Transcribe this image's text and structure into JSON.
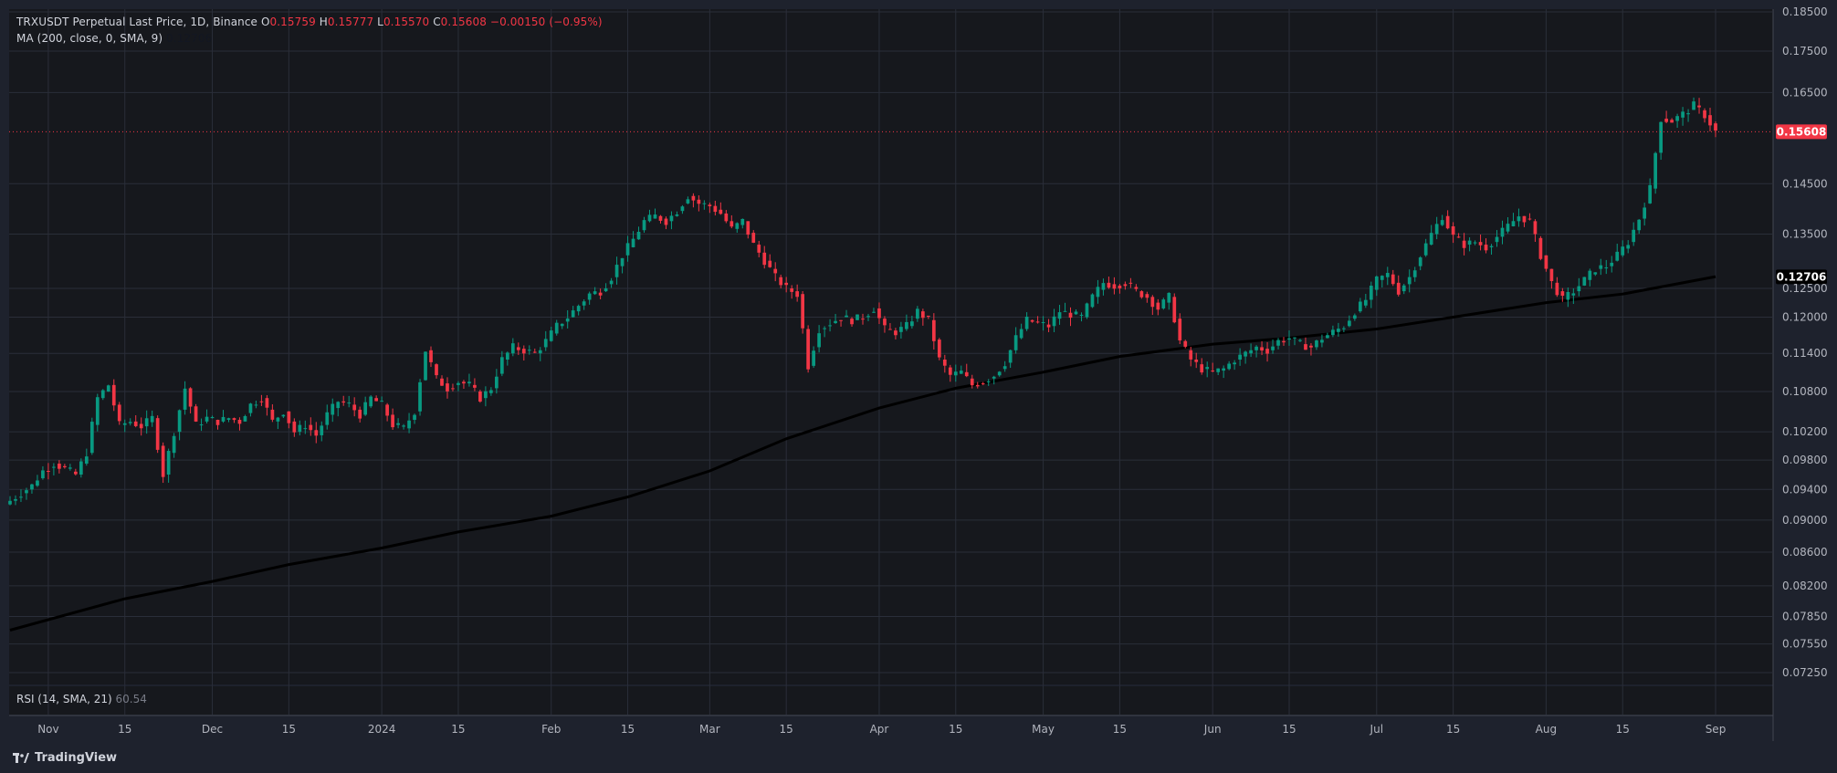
{
  "header": {
    "symbol": "TRXUSDT Perpetual Last Price, 1D, Binance",
    "open_label": "O",
    "open": "0.15759",
    "high_label": "H",
    "high": "0.15777",
    "low_label": "L",
    "low": "0.15570",
    "close_label": "C",
    "close": "0.15608",
    "change": "−0.00150 (−0.95%)",
    "ma_label": "MA (200, close, 0, SMA, 9)",
    "ma_value": "0.12706"
  },
  "rsi": {
    "label": "RSI (14, SMA, 21)",
    "value": "60.54"
  },
  "footer": {
    "brand": "TradingView"
  },
  "colors": {
    "up": "#089981",
    "down": "#f23645",
    "background": "#1e222d",
    "panel": "#16181d",
    "ma": "#000000",
    "grid": "#2a2e39"
  },
  "chart_data": {
    "type": "candlestick",
    "scale": "log",
    "price_ticks": [
      "0.18500",
      "0.17500",
      "0.16500",
      "0.14500",
      "0.13500",
      "0.12500",
      "0.12000",
      "0.11400",
      "0.10800",
      "0.10200",
      "0.09800",
      "0.09400",
      "0.09000",
      "0.08600",
      "0.08200",
      "0.07850",
      "0.07550",
      "0.07250"
    ],
    "time_ticks": [
      {
        "label": "Nov",
        "date": "2023-11-01"
      },
      {
        "label": "15",
        "date": "2023-11-15"
      },
      {
        "label": "Dec",
        "date": "2023-12-01"
      },
      {
        "label": "15",
        "date": "2023-12-15"
      },
      {
        "label": "2024",
        "date": "2024-01-01"
      },
      {
        "label": "15",
        "date": "2024-01-15"
      },
      {
        "label": "Feb",
        "date": "2024-02-01"
      },
      {
        "label": "15",
        "date": "2024-02-15"
      },
      {
        "label": "Mar",
        "date": "2024-03-01"
      },
      {
        "label": "15",
        "date": "2024-03-15"
      },
      {
        "label": "Apr",
        "date": "2024-04-01"
      },
      {
        "label": "15",
        "date": "2024-04-15"
      },
      {
        "label": "May",
        "date": "2024-05-01"
      },
      {
        "label": "15",
        "date": "2024-05-15"
      },
      {
        "label": "Jun",
        "date": "2024-06-01"
      },
      {
        "label": "15",
        "date": "2024-06-15"
      },
      {
        "label": "Jul",
        "date": "2024-07-01"
      },
      {
        "label": "15",
        "date": "2024-07-15"
      },
      {
        "label": "Aug",
        "date": "2024-08-01"
      },
      {
        "label": "15",
        "date": "2024-08-15"
      },
      {
        "label": "Sep",
        "date": "2024-09-01"
      }
    ],
    "last_price": "0.15608",
    "ma_badge": "0.12706",
    "closes": [
      [
        "2023-10-25",
        0.0925
      ],
      [
        "2023-10-27",
        0.0935
      ],
      [
        "2023-10-29",
        0.0945
      ],
      [
        "2023-10-31",
        0.0965
      ],
      [
        "2023-11-02",
        0.0975
      ],
      [
        "2023-11-04",
        0.0968
      ],
      [
        "2023-11-06",
        0.096
      ],
      [
        "2023-11-08",
        0.099
      ],
      [
        "2023-11-10",
        0.107
      ],
      [
        "2023-11-12",
        0.109
      ],
      [
        "2023-11-14",
        0.103
      ],
      [
        "2023-11-16",
        0.1035
      ],
      [
        "2023-11-18",
        0.1028
      ],
      [
        "2023-11-20",
        0.104
      ],
      [
        "2023-11-22",
        0.096
      ],
      [
        "2023-11-24",
        0.102
      ],
      [
        "2023-11-26",
        0.1085
      ],
      [
        "2023-11-28",
        0.103
      ],
      [
        "2023-11-30",
        0.104
      ],
      [
        "2023-12-02",
        0.1035
      ],
      [
        "2023-12-04",
        0.104
      ],
      [
        "2023-12-06",
        0.1035
      ],
      [
        "2023-12-08",
        0.106
      ],
      [
        "2023-12-10",
        0.107
      ],
      [
        "2023-12-12",
        0.1035
      ],
      [
        "2023-12-14",
        0.105
      ],
      [
        "2023-12-16",
        0.102
      ],
      [
        "2023-12-18",
        0.103
      ],
      [
        "2023-12-20",
        0.1015
      ],
      [
        "2023-12-22",
        0.1045
      ],
      [
        "2023-12-24",
        0.1065
      ],
      [
        "2023-12-26",
        0.106
      ],
      [
        "2023-12-28",
        0.1045
      ],
      [
        "2023-12-30",
        0.107
      ],
      [
        "2024-01-01",
        0.106
      ],
      [
        "2024-01-03",
        0.103
      ],
      [
        "2024-01-05",
        0.1025
      ],
      [
        "2024-01-07",
        0.105
      ],
      [
        "2024-01-09",
        0.1145
      ],
      [
        "2024-01-11",
        0.11
      ],
      [
        "2024-01-13",
        0.1085
      ],
      [
        "2024-01-15",
        0.1095
      ],
      [
        "2024-01-17",
        0.109
      ],
      [
        "2024-01-19",
        0.107
      ],
      [
        "2024-01-21",
        0.1085
      ],
      [
        "2024-01-23",
        0.113
      ],
      [
        "2024-01-25",
        0.115
      ],
      [
        "2024-01-27",
        0.1145
      ],
      [
        "2024-01-29",
        0.114
      ],
      [
        "2024-01-31",
        0.116
      ],
      [
        "2024-02-02",
        0.1185
      ],
      [
        "2024-02-04",
        0.12
      ],
      [
        "2024-02-06",
        0.122
      ],
      [
        "2024-02-08",
        0.124
      ],
      [
        "2024-02-10",
        0.1245
      ],
      [
        "2024-02-12",
        0.127
      ],
      [
        "2024-02-14",
        0.131
      ],
      [
        "2024-02-16",
        0.134
      ],
      [
        "2024-02-18",
        0.1375
      ],
      [
        "2024-02-20",
        0.1385
      ],
      [
        "2024-02-22",
        0.1375
      ],
      [
        "2024-02-24",
        0.1395
      ],
      [
        "2024-02-26",
        0.1425
      ],
      [
        "2024-02-28",
        0.141
      ],
      [
        "2024-03-01",
        0.1405
      ],
      [
        "2024-03-03",
        0.139
      ],
      [
        "2024-03-05",
        0.136
      ],
      [
        "2024-03-07",
        0.1375
      ],
      [
        "2024-03-09",
        0.133
      ],
      [
        "2024-03-11",
        0.13
      ],
      [
        "2024-03-13",
        0.127
      ],
      [
        "2024-03-15",
        0.125
      ],
      [
        "2024-03-17",
        0.124
      ],
      [
        "2024-03-19",
        0.112
      ],
      [
        "2024-03-21",
        0.118
      ],
      [
        "2024-03-23",
        0.119
      ],
      [
        "2024-03-25",
        0.12
      ],
      [
        "2024-03-27",
        0.1195
      ],
      [
        "2024-03-29",
        0.12
      ],
      [
        "2024-03-31",
        0.1215
      ],
      [
        "2024-04-02",
        0.118
      ],
      [
        "2024-04-04",
        0.1175
      ],
      [
        "2024-04-06",
        0.1185
      ],
      [
        "2024-04-08",
        0.121
      ],
      [
        "2024-04-10",
        0.1195
      ],
      [
        "2024-04-12",
        0.113
      ],
      [
        "2024-04-14",
        0.1105
      ],
      [
        "2024-04-16",
        0.111
      ],
      [
        "2024-04-18",
        0.109
      ],
      [
        "2024-04-20",
        0.1095
      ],
      [
        "2024-04-22",
        0.1105
      ],
      [
        "2024-04-24",
        0.1125
      ],
      [
        "2024-04-26",
        0.1165
      ],
      [
        "2024-04-28",
        0.1195
      ],
      [
        "2024-04-30",
        0.119
      ],
      [
        "2024-05-02",
        0.1185
      ],
      [
        "2024-05-04",
        0.121
      ],
      [
        "2024-05-06",
        0.1205
      ],
      [
        "2024-05-08",
        0.12
      ],
      [
        "2024-05-10",
        0.1235
      ],
      [
        "2024-05-12",
        0.126
      ],
      [
        "2024-05-14",
        0.1255
      ],
      [
        "2024-05-16",
        0.126
      ],
      [
        "2024-05-18",
        0.1245
      ],
      [
        "2024-05-20",
        0.1235
      ],
      [
        "2024-05-22",
        0.1215
      ],
      [
        "2024-05-24",
        0.1235
      ],
      [
        "2024-05-26",
        0.116
      ],
      [
        "2024-05-28",
        0.113
      ],
      [
        "2024-05-30",
        0.1115
      ],
      [
        "2024-06-01",
        0.111
      ],
      [
        "2024-06-03",
        0.1115
      ],
      [
        "2024-06-05",
        0.113
      ],
      [
        "2024-06-07",
        0.114
      ],
      [
        "2024-06-09",
        0.115
      ],
      [
        "2024-06-11",
        0.1145
      ],
      [
        "2024-06-13",
        0.116
      ],
      [
        "2024-06-15",
        0.1165
      ],
      [
        "2024-06-17",
        0.1155
      ],
      [
        "2024-06-19",
        0.115
      ],
      [
        "2024-06-21",
        0.1165
      ],
      [
        "2024-06-23",
        0.1175
      ],
      [
        "2024-06-25",
        0.1185
      ],
      [
        "2024-06-27",
        0.121
      ],
      [
        "2024-06-29",
        0.123
      ],
      [
        "2024-07-01",
        0.1265
      ],
      [
        "2024-07-03",
        0.1275
      ],
      [
        "2024-07-05",
        0.1245
      ],
      [
        "2024-07-07",
        0.127
      ],
      [
        "2024-07-09",
        0.131
      ],
      [
        "2024-07-11",
        0.135
      ],
      [
        "2024-07-13",
        0.1385
      ],
      [
        "2024-07-15",
        0.1345
      ],
      [
        "2024-07-17",
        0.133
      ],
      [
        "2024-07-19",
        0.1335
      ],
      [
        "2024-07-21",
        0.1325
      ],
      [
        "2024-07-23",
        0.1345
      ],
      [
        "2024-07-25",
        0.1365
      ],
      [
        "2024-07-27",
        0.1385
      ],
      [
        "2024-07-29",
        0.1375
      ],
      [
        "2024-07-31",
        0.131
      ],
      [
        "2024-08-02",
        0.126
      ],
      [
        "2024-08-04",
        0.123
      ],
      [
        "2024-08-06",
        0.1245
      ],
      [
        "2024-08-08",
        0.1265
      ],
      [
        "2024-08-10",
        0.1285
      ],
      [
        "2024-08-12",
        0.129
      ],
      [
        "2024-08-14",
        0.131
      ],
      [
        "2024-08-16",
        0.1335
      ],
      [
        "2024-08-18",
        0.138
      ],
      [
        "2024-08-20",
        0.144
      ],
      [
        "2024-08-22",
        0.159
      ],
      [
        "2024-08-24",
        0.1585
      ],
      [
        "2024-08-26",
        0.16
      ],
      [
        "2024-08-28",
        0.162
      ],
      [
        "2024-08-30",
        0.1598
      ],
      [
        "2024-09-01",
        0.1561
      ]
    ],
    "ma200": [
      [
        "2023-10-25",
        0.077
      ],
      [
        "2023-11-15",
        0.0805
      ],
      [
        "2023-12-01",
        0.0825
      ],
      [
        "2023-12-15",
        0.0845
      ],
      [
        "2024-01-01",
        0.0865
      ],
      [
        "2024-01-15",
        0.0885
      ],
      [
        "2024-02-01",
        0.0905
      ],
      [
        "2024-02-15",
        0.093
      ],
      [
        "2024-03-01",
        0.0965
      ],
      [
        "2024-03-15",
        0.101
      ],
      [
        "2024-04-01",
        0.1055
      ],
      [
        "2024-04-15",
        0.1085
      ],
      [
        "2024-05-01",
        0.111
      ],
      [
        "2024-05-15",
        0.1135
      ],
      [
        "2024-06-01",
        0.1155
      ],
      [
        "2024-06-15",
        0.1165
      ],
      [
        "2024-07-01",
        0.118
      ],
      [
        "2024-07-15",
        0.12
      ],
      [
        "2024-08-01",
        0.1225
      ],
      [
        "2024-08-15",
        0.124
      ],
      [
        "2024-09-01",
        0.1271
      ]
    ]
  }
}
